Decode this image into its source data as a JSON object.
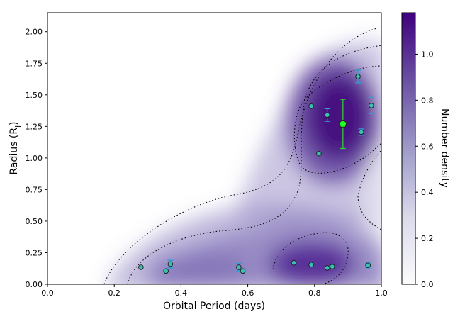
{
  "chart_data": {
    "type": "scatter",
    "xlabel": "Orbital Period (days)",
    "ylabel": "Radius (R",
    "ylabel_sub": "J",
    "ylabel_suffix": ")",
    "colorbar_label": "Number density",
    "xlim": [
      0.0,
      1.0
    ],
    "ylim": [
      0.0,
      2.15
    ],
    "x_ticks": [
      0.0,
      0.2,
      0.4,
      0.6,
      0.8,
      1.0
    ],
    "x_tick_labels": [
      "0.0",
      "0.2",
      "0.4",
      "0.6",
      "0.8",
      "1.0"
    ],
    "y_ticks": [
      0.0,
      0.25,
      0.5,
      0.75,
      1.0,
      1.25,
      1.5,
      1.75,
      2.0
    ],
    "y_tick_labels": [
      "0.00",
      "0.25",
      "0.50",
      "0.75",
      "1.00",
      "1.25",
      "1.50",
      "1.75",
      "2.00"
    ],
    "colorbar_range": [
      0.0,
      1.18
    ],
    "colorbar_ticks": [
      0.0,
      0.2,
      0.4,
      0.6,
      0.8,
      1.0
    ],
    "colorbar_tick_labels": [
      "0.0",
      "0.2",
      "0.4",
      "0.6",
      "0.8",
      "1.0"
    ],
    "colors": {
      "point_fill": "#3cbfb2",
      "point_edge": "#1a1a1a",
      "errorbar": "#2a9fd6",
      "highlight_fill": "#22ff22",
      "highlight_errorbar": "#33cc33",
      "colormap_low": "#ffffff",
      "colormap_high": "#3f007d",
      "contour": "#000000"
    },
    "density_colormap": "Purples",
    "contours": "dotted",
    "series": [
      {
        "points": [
          {
            "x": 0.28,
            "y": 0.135
          },
          {
            "x": 0.355,
            "y": 0.105
          },
          {
            "x": 0.368,
            "y": 0.16,
            "yerr": 0.03
          },
          {
            "x": 0.573,
            "y": 0.135,
            "yerr": 0.03
          },
          {
            "x": 0.585,
            "y": 0.105
          },
          {
            "x": 0.738,
            "y": 0.17
          },
          {
            "x": 0.79,
            "y": 0.155
          },
          {
            "x": 0.838,
            "y": 0.13
          },
          {
            "x": 0.853,
            "y": 0.14
          },
          {
            "x": 0.96,
            "y": 0.15,
            "yerr": 0.02
          },
          {
            "x": 0.79,
            "y": 1.41
          },
          {
            "x": 0.838,
            "y": 1.34,
            "yerr": 0.05
          },
          {
            "x": 0.813,
            "y": 1.035
          },
          {
            "x": 0.93,
            "y": 1.645,
            "yerr": 0.05
          },
          {
            "x": 0.94,
            "y": 1.205,
            "yerr": 0.025
          },
          {
            "x": 0.97,
            "y": 1.415,
            "yerr": 0.065
          }
        ]
      },
      {
        "highlight": true,
        "points": [
          {
            "x": 0.885,
            "y": 1.27,
            "yerr": 0.195
          }
        ]
      }
    ]
  }
}
